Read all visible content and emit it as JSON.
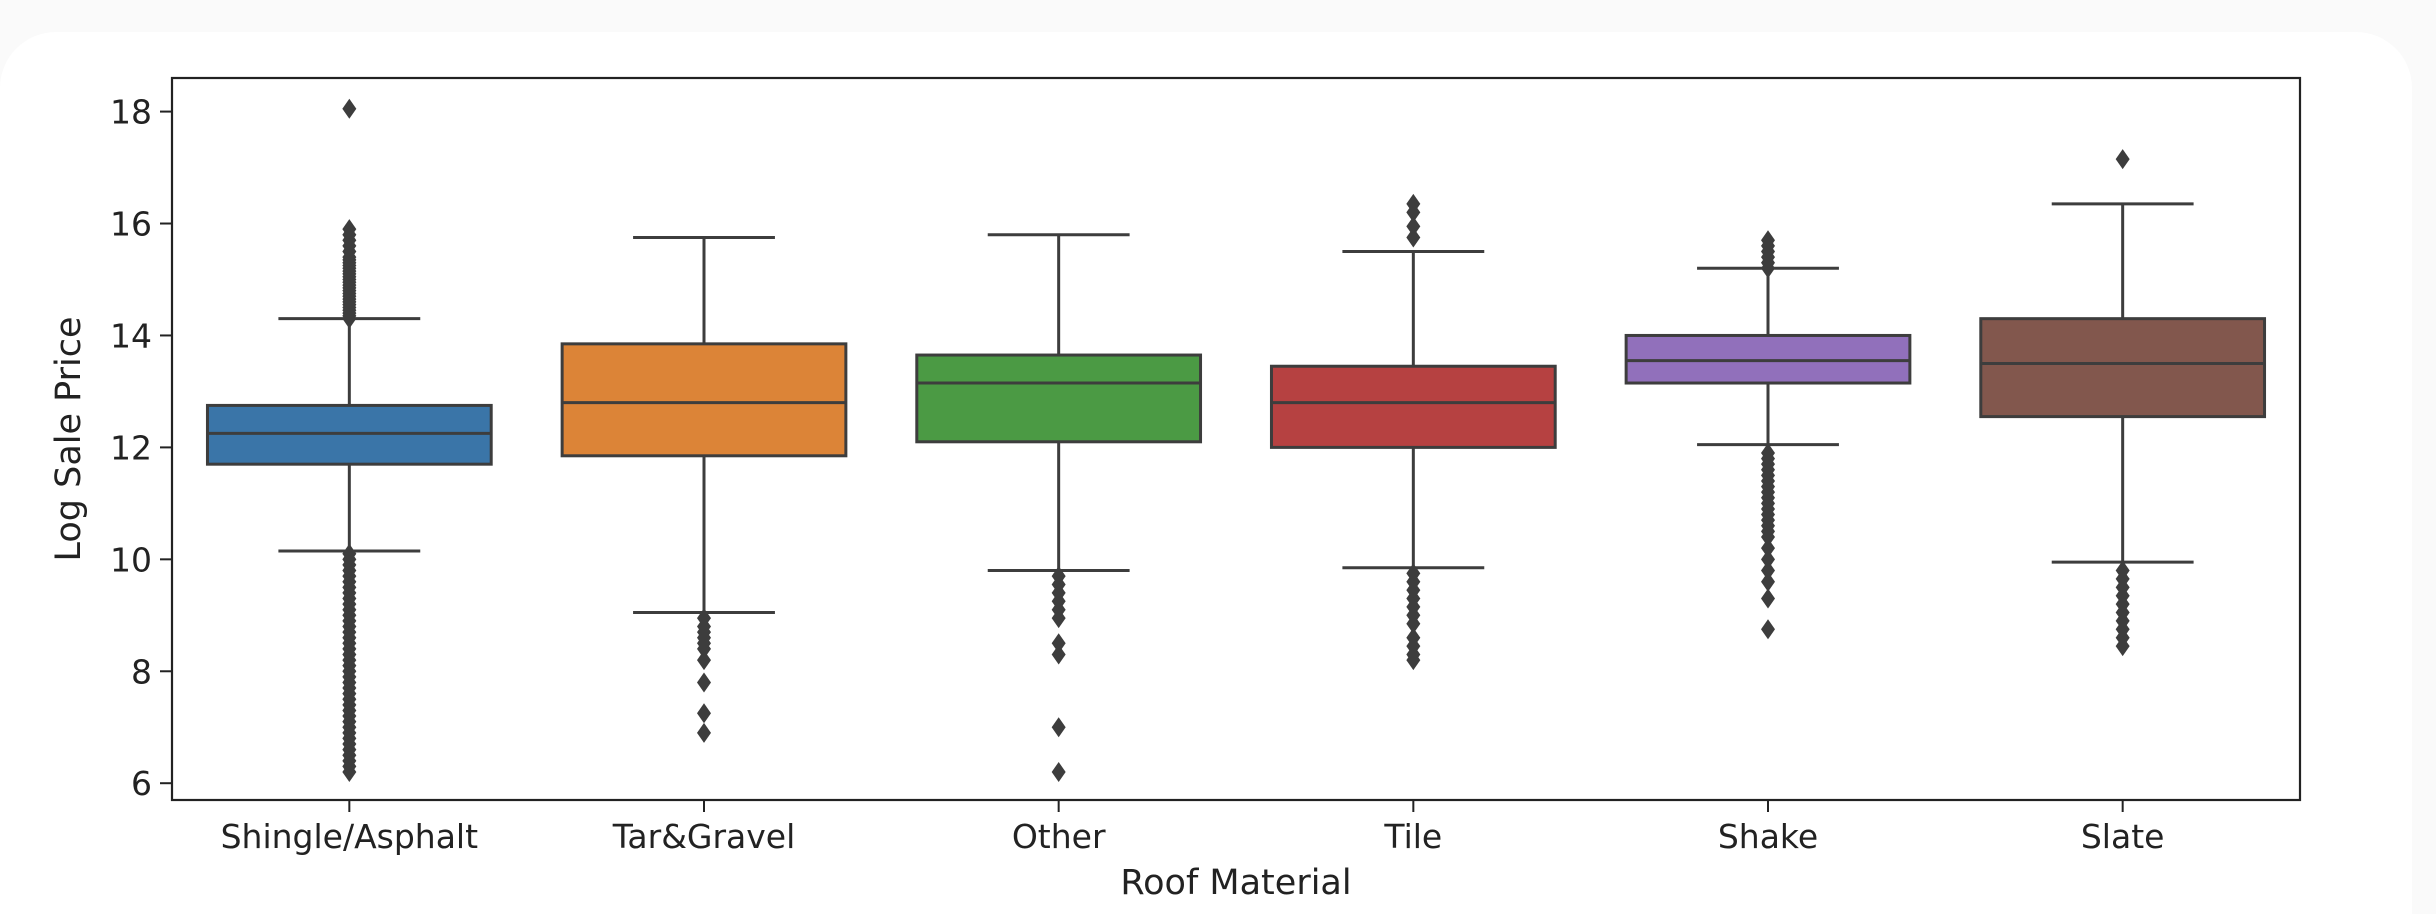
{
  "chart_data": {
    "type": "box",
    "title": "",
    "xlabel": "Roof Material",
    "ylabel": "Log Sale Price",
    "ylim": [
      5.7,
      18.6
    ],
    "yticks": [
      6,
      8,
      10,
      12,
      14,
      16,
      18
    ],
    "grid": false,
    "categories": [
      "Shingle/Asphalt",
      "Tar&Gravel",
      "Other",
      "Tile",
      "Shake",
      "Slate"
    ],
    "colors": [
      "#3a75a8",
      "#dc8437",
      "#4b9a44",
      "#b64141",
      "#9170bb",
      "#82574d"
    ],
    "boxes": [
      {
        "whisker_low": 10.15,
        "q1": 11.7,
        "median": 12.25,
        "q3": 12.75,
        "whisker_high": 14.3,
        "outliers_high": [
          14.3,
          14.35,
          14.4,
          14.45,
          14.5,
          14.55,
          14.6,
          14.65,
          14.7,
          14.75,
          14.8,
          14.85,
          14.9,
          14.95,
          15.0,
          15.05,
          15.1,
          15.15,
          15.2,
          15.25,
          15.3,
          15.35,
          15.4,
          15.5,
          15.6,
          15.7,
          15.8,
          15.9,
          18.05
        ],
        "outliers_low": [
          10.1,
          10.0,
          9.9,
          9.8,
          9.7,
          9.6,
          9.5,
          9.4,
          9.3,
          9.2,
          9.1,
          9.0,
          8.9,
          8.8,
          8.7,
          8.6,
          8.5,
          8.4,
          8.3,
          8.2,
          8.1,
          8.0,
          7.9,
          7.8,
          7.7,
          7.6,
          7.5,
          7.4,
          7.3,
          7.2,
          7.1,
          7.0,
          6.9,
          6.8,
          6.7,
          6.6,
          6.5,
          6.4,
          6.3,
          6.2
        ]
      },
      {
        "whisker_low": 9.05,
        "q1": 11.85,
        "median": 12.8,
        "q3": 13.85,
        "whisker_high": 15.75,
        "outliers_high": [],
        "outliers_low": [
          8.95,
          8.8,
          8.7,
          8.6,
          8.5,
          8.4,
          8.2,
          7.8,
          7.25,
          6.9
        ]
      },
      {
        "whisker_low": 9.8,
        "q1": 12.1,
        "median": 13.15,
        "q3": 13.65,
        "whisker_high": 15.8,
        "outliers_high": [],
        "outliers_low": [
          9.7,
          9.55,
          9.4,
          9.25,
          9.1,
          8.95,
          8.5,
          8.3,
          7.0,
          6.2
        ]
      },
      {
        "whisker_low": 9.85,
        "q1": 12.0,
        "median": 12.8,
        "q3": 13.45,
        "whisker_high": 15.5,
        "outliers_high": [
          15.75,
          15.95,
          16.2,
          16.35
        ],
        "outliers_low": [
          9.75,
          9.6,
          9.45,
          9.3,
          9.15,
          9.0,
          8.85,
          8.6,
          8.45,
          8.3,
          8.2
        ]
      },
      {
        "whisker_low": 12.05,
        "q1": 13.15,
        "median": 13.55,
        "q3": 14.0,
        "whisker_high": 15.2,
        "outliers_high": [
          15.2,
          15.3,
          15.4,
          15.5,
          15.6,
          15.7
        ],
        "outliers_low": [
          11.9,
          11.8,
          11.7,
          11.6,
          11.5,
          11.4,
          11.3,
          11.2,
          11.1,
          11.0,
          10.9,
          10.8,
          10.7,
          10.6,
          10.5,
          10.4,
          10.2,
          10.0,
          9.8,
          9.6,
          9.3,
          8.75
        ]
      },
      {
        "whisker_low": 9.95,
        "q1": 12.55,
        "median": 13.5,
        "q3": 14.3,
        "whisker_high": 16.35,
        "outliers_high": [
          17.15
        ],
        "outliers_low": [
          9.8,
          9.65,
          9.5,
          9.35,
          9.2,
          9.05,
          8.9,
          8.75,
          8.6,
          8.45
        ]
      }
    ]
  }
}
